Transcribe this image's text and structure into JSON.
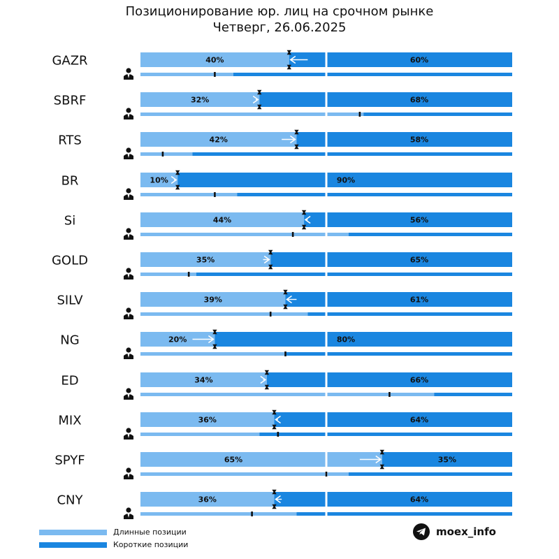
{
  "title": {
    "line1": "Позиционирование юр. лиц на срочном рынке",
    "line2": "Четверг, 26.06.2025"
  },
  "colors": {
    "long": "#7BBAF0",
    "short": "#1A86E0",
    "divider": "#ffffff",
    "marker": "#111111"
  },
  "legend": {
    "long_label": "Длинные позиции",
    "short_label": "Короткие позиции"
  },
  "brand": {
    "name": "moex_info",
    "icon": "telegram-icon"
  },
  "chart_data": {
    "type": "bar",
    "orientation": "horizontal-stacked",
    "categories": [
      "GAZR",
      "SBRF",
      "RTS",
      "BR",
      "Si",
      "GOLD",
      "SILV",
      "NG",
      "ED",
      "MIX",
      "SPYF",
      "CNY"
    ],
    "xlim": [
      0,
      100
    ],
    "series": [
      {
        "name": "Длинные позиции",
        "values": [
          40,
          32,
          42,
          10,
          44,
          35,
          39,
          20,
          34,
          36,
          65,
          36
        ]
      },
      {
        "name": "Короткие позиции",
        "values": [
          60,
          68,
          58,
          90,
          56,
          65,
          61,
          80,
          66,
          64,
          35,
          64
        ]
      }
    ],
    "previous_long": [
      45,
      31,
      38,
      9,
      45,
      33,
      42,
      14,
      33,
      37,
      59,
      38
    ],
    "individuals_long": [
      25,
      60,
      14,
      26,
      56,
      15,
      45,
      39,
      79,
      32,
      56,
      42
    ],
    "individuals_previous_long": [
      20,
      59,
      6,
      20,
      41,
      13,
      35,
      39,
      67,
      37,
      50,
      30
    ],
    "labels": [
      {
        "long": "40%",
        "short": "60%"
      },
      {
        "long": "32%",
        "short": "68%"
      },
      {
        "long": "42%",
        "short": "58%"
      },
      {
        "long": "10%",
        "short": "90%"
      },
      {
        "long": "44%",
        "short": "56%"
      },
      {
        "long": "35%",
        "short": "65%"
      },
      {
        "long": "39%",
        "short": "61%"
      },
      {
        "long": "20%",
        "short": "80%"
      },
      {
        "long": "34%",
        "short": "66%"
      },
      {
        "long": "36%",
        "short": "64%"
      },
      {
        "long": "65%",
        "short": "35%"
      },
      {
        "long": "36%",
        "short": "64%"
      }
    ],
    "individuals_icon": "person-icon",
    "grid": false,
    "legend_position": "bottom-left"
  }
}
